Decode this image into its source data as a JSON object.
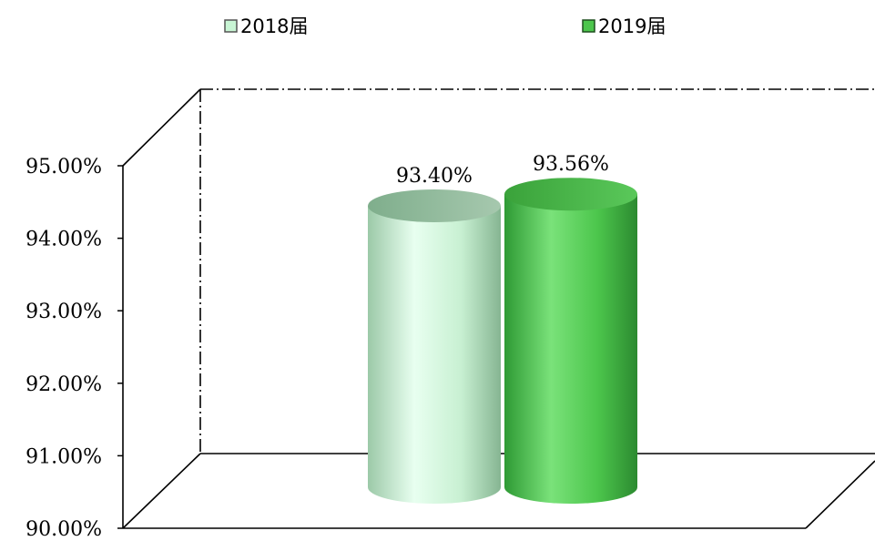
{
  "chart_data": {
    "type": "bar",
    "style": "3d-cylinder",
    "categories": [
      ""
    ],
    "series": [
      {
        "name": "2018届",
        "values": [
          93.4
        ],
        "label": "93.40%",
        "color": "#c8f5d4"
      },
      {
        "name": "2019届",
        "values": [
          93.56
        ],
        "label": "93.56%",
        "color": "#4cc64c"
      }
    ],
    "ylim": [
      90,
      95
    ],
    "yticks": [
      "90.00%",
      "91.00%",
      "92.00%",
      "93.00%",
      "94.00%",
      "95.00%"
    ],
    "legend_position": "top",
    "grid": false
  }
}
